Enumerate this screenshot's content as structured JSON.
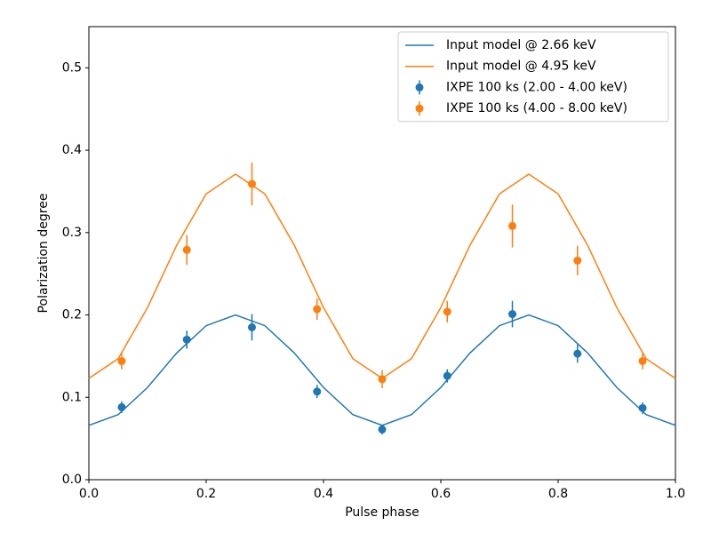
{
  "chart_data": {
    "type": "line",
    "x_label": "Pulse phase",
    "y_label": "Polarization degree",
    "xlim": [
      0,
      1
    ],
    "ylim": [
      0,
      0.55
    ],
    "xticks": [
      {
        "value": 0,
        "label": "0.0"
      },
      0.2,
      0.4,
      0.6,
      0.8,
      {
        "value": 1,
        "label": "1.0"
      }
    ],
    "yticks": [
      {
        "value": 0,
        "label": "0.0"
      },
      0.1,
      0.2,
      0.3,
      0.4,
      0.5
    ],
    "grid": false,
    "legend": "upper right",
    "series": [
      {
        "name": "Input model @ 2.66 keV",
        "color": "#1f77b4",
        "mode": "line",
        "x": [
          0,
          0.05,
          0.1,
          0.15,
          0.2,
          0.25,
          0.3,
          0.35,
          0.4,
          0.45,
          0.5,
          0.55,
          0.6,
          0.65,
          0.7,
          0.75,
          0.8,
          0.85,
          0.9,
          0.95,
          1
        ],
        "values": [
          0.066,
          0.079,
          0.112,
          0.154,
          0.187,
          0.2,
          0.187,
          0.154,
          0.112,
          0.079,
          0.066,
          0.079,
          0.112,
          0.154,
          0.187,
          0.2,
          0.187,
          0.154,
          0.112,
          0.079,
          0.066
        ]
      },
      {
        "name": "Input model @ 4.95 keV",
        "color": "#ff7f0e",
        "mode": "line",
        "x": [
          0,
          0.05,
          0.1,
          0.15,
          0.2,
          0.25,
          0.3,
          0.35,
          0.4,
          0.45,
          0.5,
          0.55,
          0.6,
          0.65,
          0.7,
          0.75,
          0.8,
          0.85,
          0.9,
          0.95,
          1
        ],
        "values": [
          0.123,
          0.147,
          0.209,
          0.285,
          0.347,
          0.371,
          0.347,
          0.285,
          0.209,
          0.147,
          0.123,
          0.147,
          0.209,
          0.285,
          0.347,
          0.371,
          0.347,
          0.285,
          0.209,
          0.147,
          0.123
        ]
      },
      {
        "name": "IXPE 100 ks (2.00 - 4.00 keV)",
        "color": "#1f77b4",
        "mode": "errorbar",
        "x": [
          0.056,
          0.167,
          0.278,
          0.389,
          0.5,
          0.611,
          0.722,
          0.833,
          0.944
        ],
        "values": [
          0.088,
          0.17,
          0.185,
          0.107,
          0.061,
          0.126,
          0.201,
          0.153,
          0.087
        ],
        "errors": [
          0.007,
          0.011,
          0.016,
          0.008,
          0.006,
          0.008,
          0.016,
          0.011,
          0.007
        ]
      },
      {
        "name": "IXPE 100 ks (4.00 - 8.00 keV)",
        "color": "#ff7f0e",
        "mode": "errorbar",
        "x": [
          0.056,
          0.167,
          0.278,
          0.389,
          0.5,
          0.611,
          0.722,
          0.833,
          0.944
        ],
        "values": [
          0.144,
          0.279,
          0.359,
          0.207,
          0.122,
          0.204,
          0.308,
          0.266,
          0.144
        ],
        "errors": [
          0.01,
          0.018,
          0.026,
          0.013,
          0.011,
          0.013,
          0.026,
          0.018,
          0.01
        ]
      }
    ]
  }
}
